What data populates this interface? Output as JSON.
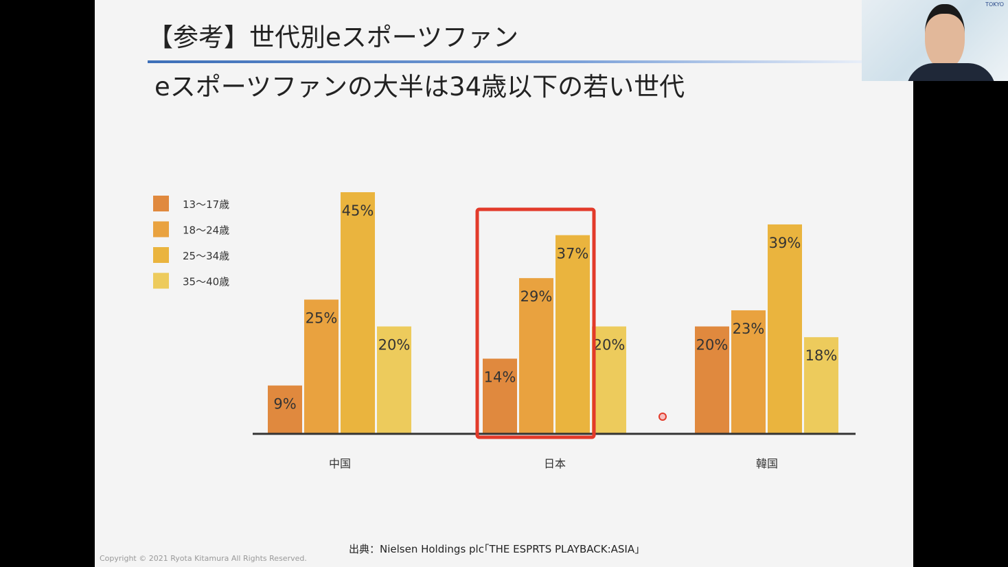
{
  "slide": {
    "title": "【参考】世代別eスポーツファン",
    "subtitle": "eスポーツファンの大半は34歳以下の若い世代",
    "source": "出典：Nielsen Holdings plc｢THE ESPRTS PLAYBACK:ASIA｣",
    "copyright": "Copyright © 2021 Ryota Kitamura All Rights Reserved."
  },
  "webcam": {
    "logo": "TOKYO"
  },
  "colors": {
    "s0": "#e0893e",
    "s1": "#e9a23f",
    "s2": "#eab43e",
    "s3": "#edcb5c",
    "highlight": "#e23a2a",
    "axis": "#333333"
  },
  "chart_data": {
    "type": "bar",
    "title": "",
    "categories": [
      "中国",
      "日本",
      "韓国"
    ],
    "series": [
      {
        "name": "13〜17歳",
        "values": [
          9,
          14,
          20
        ]
      },
      {
        "name": "18〜24歳",
        "values": [
          25,
          29,
          23
        ]
      },
      {
        "name": "25〜34歳",
        "values": [
          45,
          37,
          39
        ]
      },
      {
        "name": "35〜40歳",
        "values": [
          20,
          20,
          18
        ]
      }
    ],
    "labels": [
      [
        "9%",
        "14%",
        "20%"
      ],
      [
        "25%",
        "29%",
        "23%"
      ],
      [
        "45%",
        "37%",
        "39%"
      ],
      [
        "20%",
        "20%",
        "18%"
      ]
    ],
    "ylim": [
      0,
      45
    ],
    "legend": "left",
    "highlighted_category": "日本",
    "grid": false
  }
}
